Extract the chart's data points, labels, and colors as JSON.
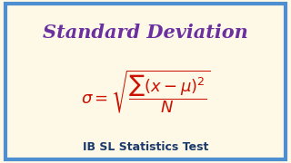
{
  "background_color": "#fef9e7",
  "border_color": "#4d8fd1",
  "title_text": "Standard Deviation",
  "title_color": "#6b2fa0",
  "title_fontsize": 15,
  "formula_color": "#cc1100",
  "subtitle_text": "IB SL Statistics Test",
  "subtitle_color": "#1a3a6b",
  "subtitle_fontsize": 9,
  "subtitle_fontweight": "bold",
  "border_linewidth": 3
}
